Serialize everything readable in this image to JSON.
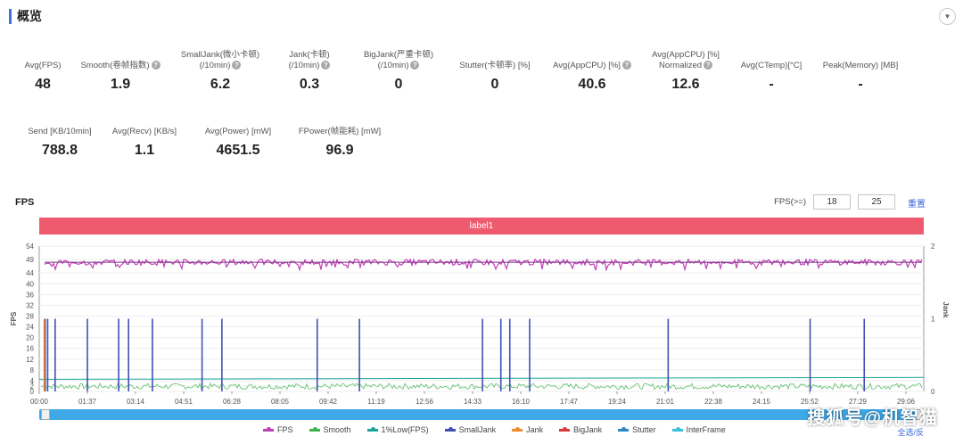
{
  "section": {
    "title": "概览"
  },
  "metrics_row1": [
    {
      "label": "Avg(FPS)",
      "value": "48",
      "help": false
    },
    {
      "label": "Smooth(卷帧指数)",
      "value": "1.9",
      "help": true
    },
    {
      "label": "SmallJank(微小卡顿)\n(/10min)",
      "value": "6.2",
      "help": true
    },
    {
      "label": "Jank(卡顿)\n(/10min)",
      "value": "0.3",
      "help": true
    },
    {
      "label": "BigJank(严重卡顿)\n(/10min)",
      "value": "0",
      "help": true
    },
    {
      "label": "Stutter(卡顿率) [%]",
      "value": "0",
      "help": false
    },
    {
      "label": "Avg(AppCPU) [%]",
      "value": "40.6",
      "help": true
    },
    {
      "label": "Avg(AppCPU) [%]\nNormalized",
      "value": "12.6",
      "help": true
    },
    {
      "label": "Avg(CTemp)[°C]",
      "value": "-",
      "help": false
    },
    {
      "label": "Peak(Memory) [MB]",
      "value": "-",
      "help": false
    }
  ],
  "metrics_row2": [
    {
      "label": "Send [KB/10min]",
      "value": "788.8",
      "help": false
    },
    {
      "label": "Avg(Recv) [KB/s]",
      "value": "1.1",
      "help": false
    },
    {
      "label": "Avg(Power) [mW]",
      "value": "4651.5",
      "help": false
    },
    {
      "label": "FPower(帧能耗) [mW]",
      "value": "96.9",
      "help": false
    }
  ],
  "fps_panel": {
    "title": "FPS",
    "threshold_label": "FPS(>=)",
    "threshold_1": "18",
    "threshold_2": "25",
    "reset_label": "重置",
    "band_label": "label1",
    "select_all_label": "全选/反"
  },
  "chart_data": {
    "type": "line",
    "ylabel": "FPS",
    "y2label": "Jank",
    "y_ticks": [
      0,
      2,
      4,
      8,
      12,
      16,
      20,
      24,
      28,
      32,
      36,
      40,
      44,
      49,
      54
    ],
    "y2_ticks": [
      0,
      1,
      2
    ],
    "ylim": [
      0,
      54
    ],
    "y2lim": [
      0,
      2
    ],
    "x_ticks": [
      "00:00",
      "01:37",
      "03:14",
      "04:51",
      "06:28",
      "08:05",
      "09:42",
      "11:19",
      "12:56",
      "14:33",
      "16:10",
      "17:47",
      "19:24",
      "21:01",
      "22:38",
      "24:15",
      "25:52",
      "27:29",
      "29:06"
    ],
    "fps_avg": 48,
    "smooth_avg": 1.9,
    "small_jank_at": [
      "00:12",
      "00:17",
      "00:32",
      "01:37",
      "02:40",
      "03:00",
      "03:48",
      "05:28",
      "06:08",
      "09:20",
      "10:45",
      "14:53",
      "15:30",
      "15:48",
      "16:28",
      "21:07",
      "25:53",
      "27:42"
    ],
    "jank_at": [
      "00:10"
    ],
    "series": [
      {
        "name": "FPS",
        "color": "#c040b8"
      },
      {
        "name": "Smooth",
        "color": "#3cb44b"
      },
      {
        "name": "1%Low(FPS)",
        "color": "#1aa39a"
      },
      {
        "name": "SmallJank",
        "color": "#4050b5"
      },
      {
        "name": "Jank",
        "color": "#ef8d2a"
      },
      {
        "name": "BigJank",
        "color": "#d63a3a"
      },
      {
        "name": "Stutter",
        "color": "#2f86c4"
      },
      {
        "name": "InterFrame",
        "color": "#37c2d6"
      }
    ]
  },
  "watermark": "搜狐号@机智猫"
}
